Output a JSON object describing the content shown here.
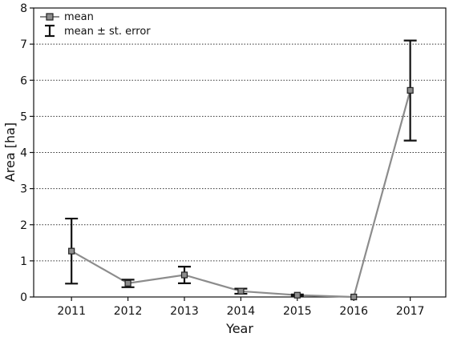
{
  "chart_data": {
    "type": "line",
    "title": "",
    "xlabel": "Year",
    "ylabel": "Area [ha]",
    "x": [
      "2011",
      "2012",
      "2013",
      "2014",
      "2015",
      "2016",
      "2017"
    ],
    "series": [
      {
        "name": "mean",
        "values": [
          1.27,
          0.38,
          0.61,
          0.16,
          0.05,
          0.0,
          5.72
        ],
        "error_low": [
          0.37,
          0.27,
          0.38,
          0.09,
          0.02,
          0.0,
          4.33
        ],
        "error_high": [
          2.17,
          0.48,
          0.84,
          0.23,
          0.07,
          0.0,
          7.1
        ]
      }
    ],
    "error_legend": "mean ± st. error",
    "yticks": [
      0,
      1,
      2,
      3,
      4,
      5,
      6,
      7,
      8
    ],
    "ylim": [
      0,
      8
    ],
    "grid": "horizontal dotted",
    "legend_position": "top-left",
    "colors": {
      "line": "#8c8c8c",
      "marker_fill": "#8c8c8c",
      "marker_stroke": "#222222",
      "error_bar": "#111111",
      "grid": "#333333"
    }
  }
}
